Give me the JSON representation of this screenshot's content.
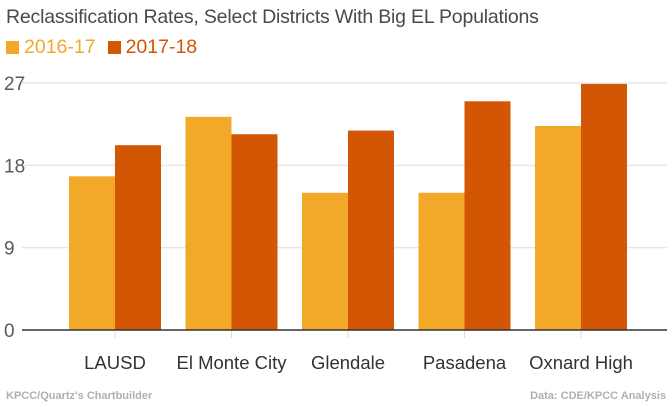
{
  "chart_data": {
    "type": "bar",
    "title": "Reclassification Rates, Select Districts With Big EL Populations",
    "categories": [
      "LAUSD",
      "El Monte City",
      "Glendale",
      "Pasadena",
      "Oxnard High"
    ],
    "series": [
      {
        "name": "2016-17",
        "color": "#f2a929",
        "values": [
          16.8,
          23.3,
          15.0,
          15.0,
          22.3
        ]
      },
      {
        "name": "2017-18",
        "color": "#d35604",
        "values": [
          20.2,
          21.4,
          21.8,
          25.0,
          26.9
        ]
      }
    ],
    "yticks": [
      "0",
      "9",
      "18",
      "27"
    ],
    "ylim": [
      0,
      27
    ],
    "grid": true,
    "legend": "top-left",
    "xlabel": "",
    "ylabel": ""
  },
  "footer": {
    "credit": "KPCC/Quartz's Chartbuilder",
    "source": "Data: CDE/KPCC Analysis"
  }
}
